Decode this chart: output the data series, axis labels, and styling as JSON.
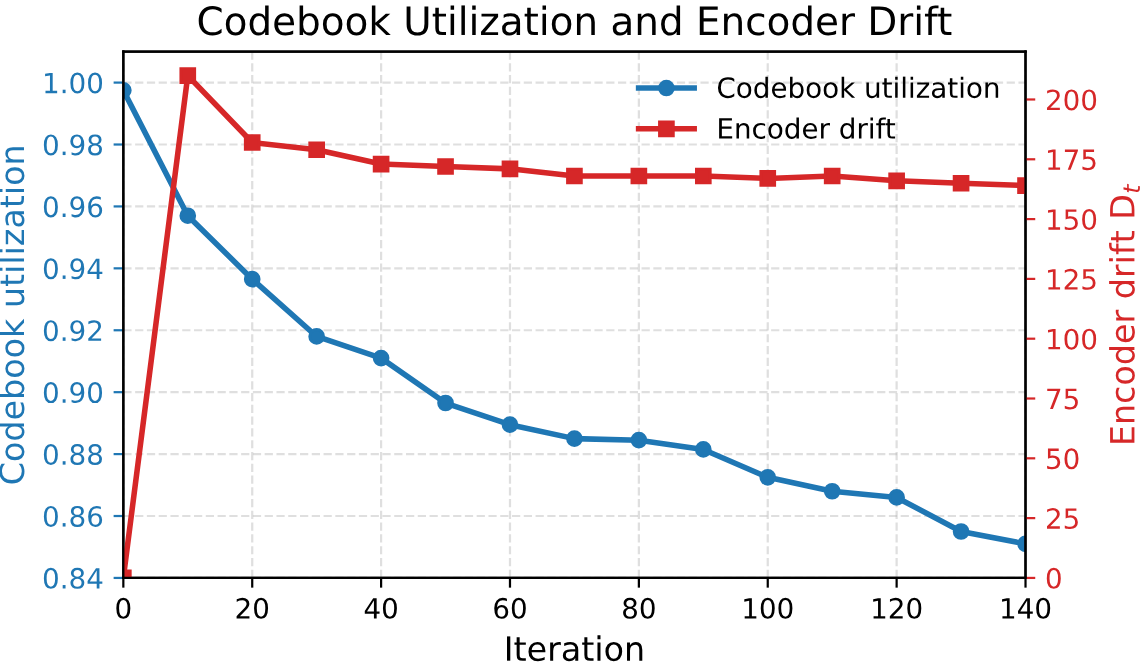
{
  "chart_data": {
    "type": "line",
    "title": "Codebook Utilization and Encoder Drift",
    "xlabel": "Iteration",
    "ylabel": "Codebook utilization",
    "y2label": "Encoder drift D$_{t}$",
    "x": [
      0,
      10,
      20,
      30,
      40,
      50,
      60,
      70,
      80,
      90,
      100,
      110,
      120,
      130,
      140
    ],
    "series": [
      {
        "name": "Codebook utilization",
        "color": "#1f77b4",
        "marker": "circle",
        "values": [
          0.9975,
          0.957,
          0.9365,
          0.918,
          0.911,
          0.8965,
          0.8895,
          0.885,
          0.8845,
          0.8815,
          0.8725,
          0.868,
          0.866,
          0.855,
          0.851
        ]
      },
      {
        "name": "Encoder drift",
        "color": "#d62728",
        "marker": "square",
        "axis": "y2",
        "values": [
          0,
          210,
          182,
          179,
          173,
          172,
          171,
          168,
          168,
          168,
          167,
          168,
          166,
          165,
          164
        ]
      }
    ],
    "xlim": [
      0,
      140
    ],
    "xticks": [
      0,
      20,
      40,
      60,
      80,
      100,
      120,
      140
    ],
    "ylim": [
      0.84,
      1.01
    ],
    "yticks": [
      0.84,
      0.86,
      0.88,
      {
        "value": 0.9,
        "label": "0.90"
      },
      0.92,
      0.94,
      0.96,
      0.98,
      {
        "value": 1.0,
        "label": "1.00"
      }
    ],
    "y2lim": [
      0,
      220
    ],
    "y2ticks": [
      0,
      25,
      50,
      75,
      100,
      125,
      150,
      175,
      200
    ],
    "grid": true,
    "legend": "top right",
    "line_style": "solid"
  }
}
